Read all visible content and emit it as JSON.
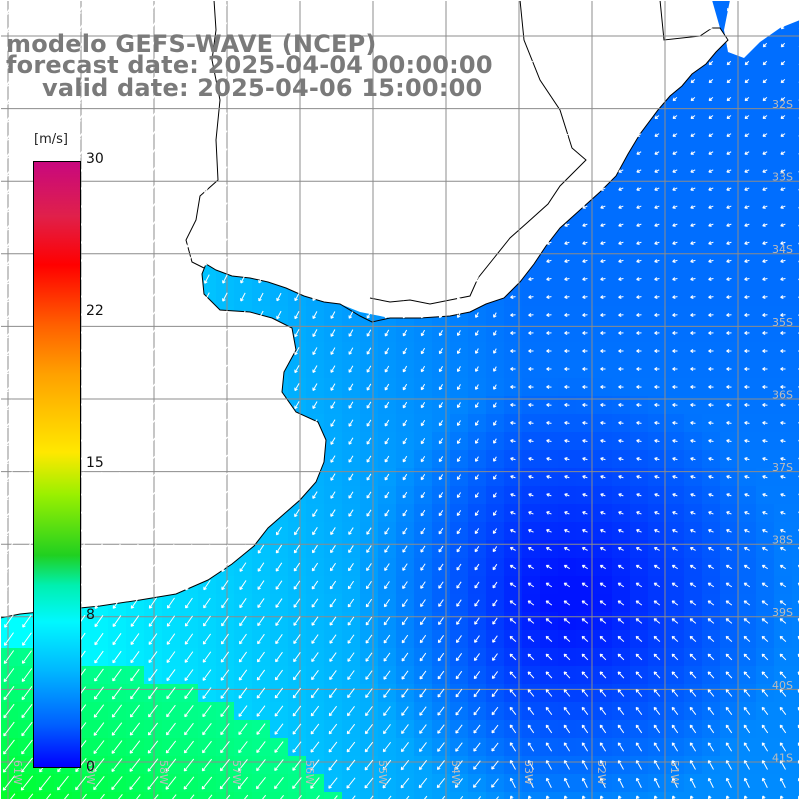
{
  "title": {
    "model": "modelo GEFS-WAVE (NCEP)",
    "forecast": "forecast date: 2025-04-04 00:00:00",
    "valid": "valid date: 2025-04-06 15:00:00"
  },
  "colorbar": {
    "unit": "[m/s]",
    "ticks": [
      "30",
      "22",
      "15",
      "8",
      "0"
    ],
    "tick_values": [
      30,
      22,
      15,
      8,
      0
    ],
    "range": [
      0,
      30
    ]
  },
  "map": {
    "lon_labels": [
      "61W",
      "59W",
      "58W",
      "57W",
      "56W",
      "55W",
      "54W",
      "53W",
      "52W",
      "51W"
    ],
    "lat_labels": [
      "32S",
      "33S",
      "34S",
      "35S",
      "36S",
      "37S",
      "38S",
      "39S",
      "40S",
      "41S"
    ],
    "colors": {
      "land": "#ffffff",
      "coast": "#000000",
      "grid": "#8c8c8c",
      "arrows": "#ffffff",
      "axis_labels": "#bcbcbc"
    }
  }
}
